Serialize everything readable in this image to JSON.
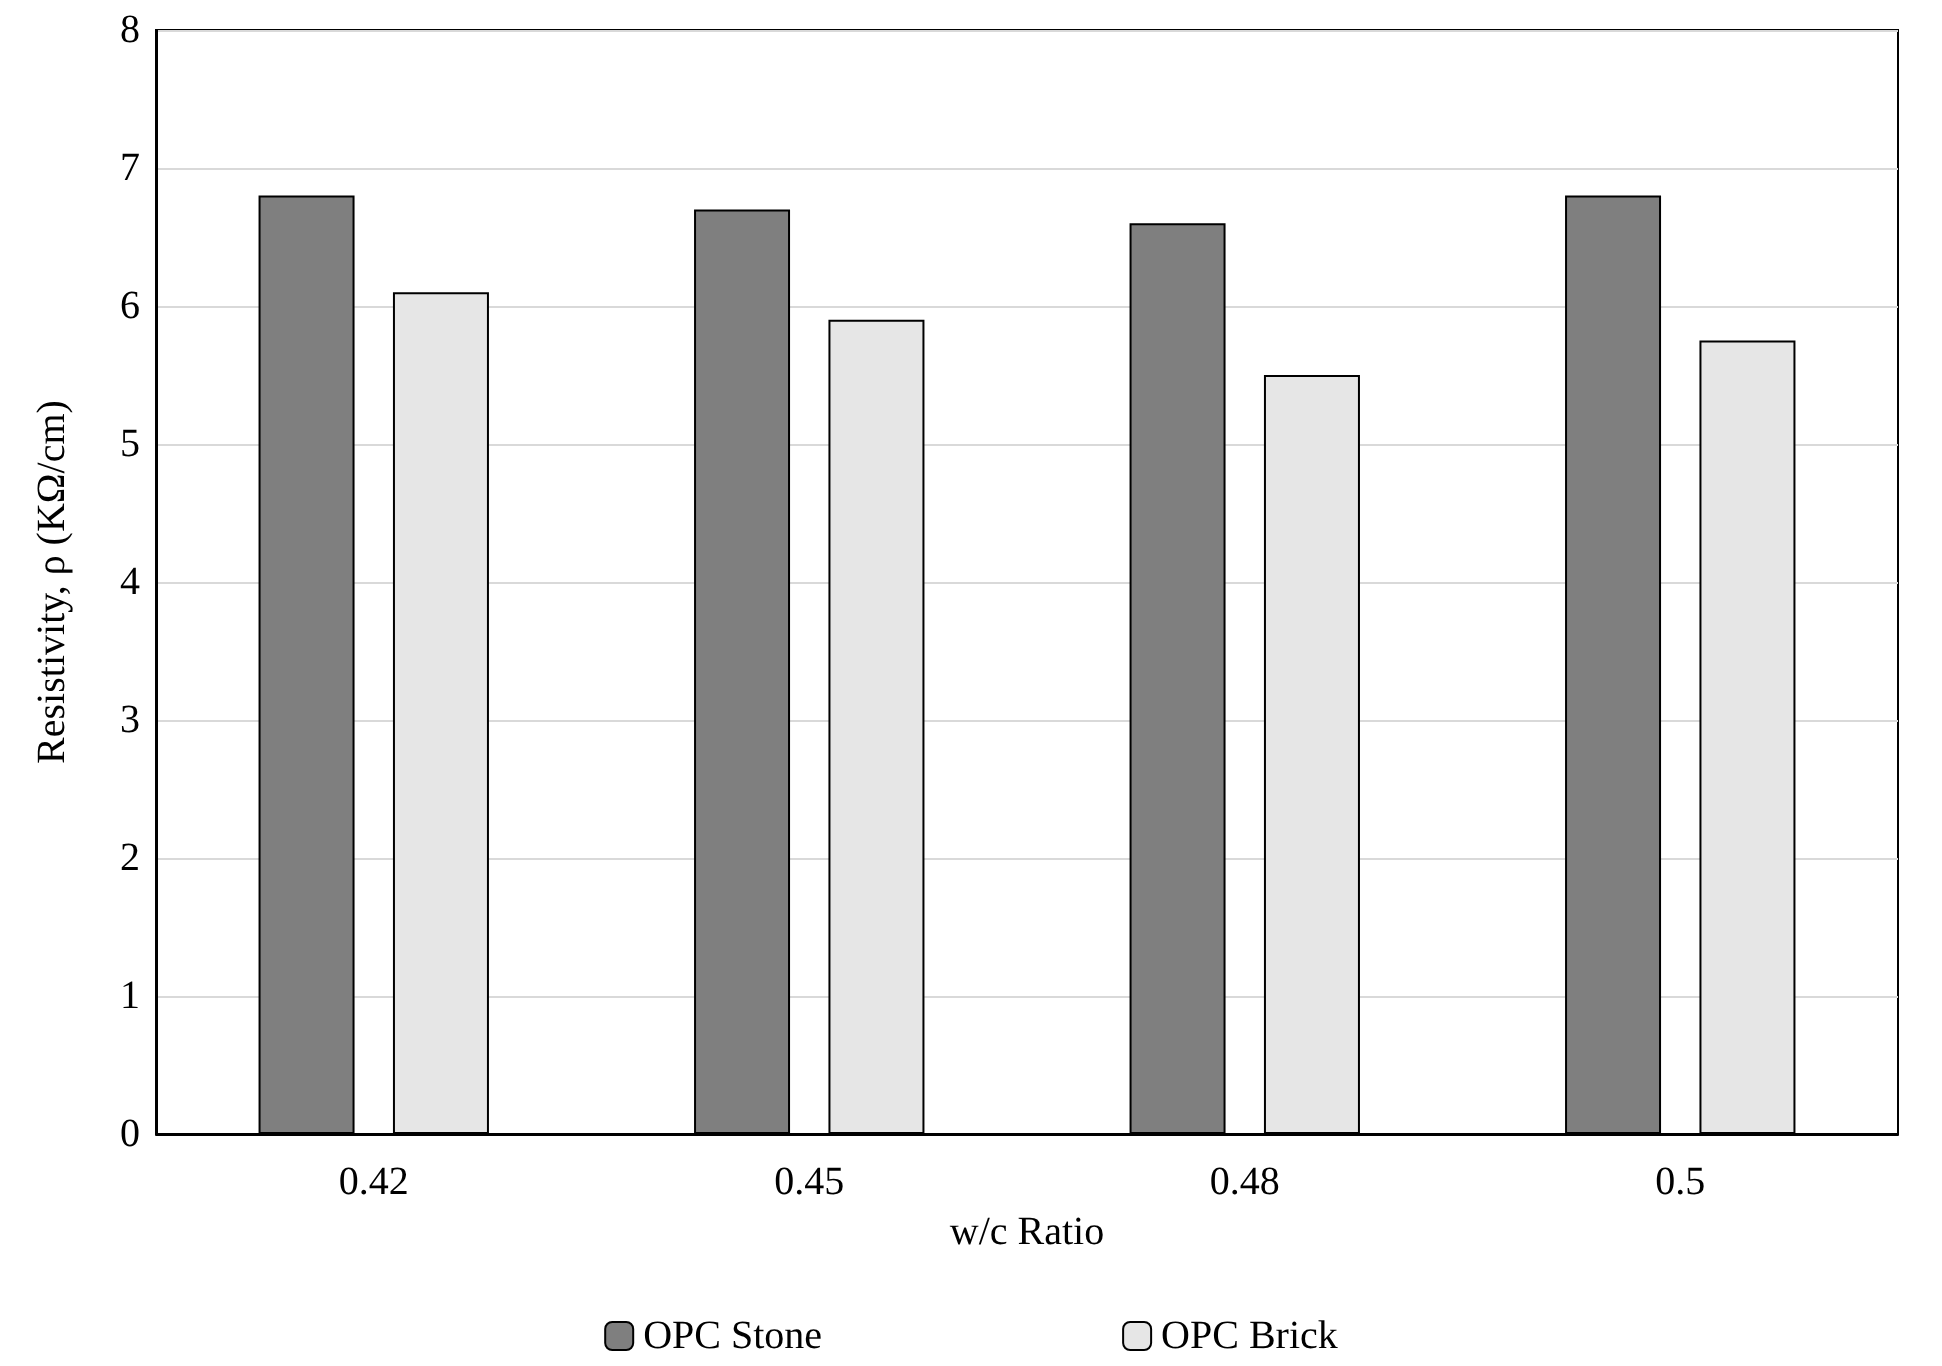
{
  "chart_data": {
    "type": "bar",
    "xlabel": "w/c Ratio",
    "ylabel": "Resistivity, ρ (KΩ/cm)",
    "categories": [
      "0.42",
      "0.45",
      "0.48",
      "0.5"
    ],
    "series": [
      {
        "name": "OPC Stone",
        "color": "#7f7f7f",
        "values": [
          6.8,
          6.7,
          6.6,
          6.8
        ]
      },
      {
        "name": "OPC Brick",
        "color": "#e6e6e6",
        "values": [
          6.1,
          5.9,
          5.5,
          5.75
        ]
      }
    ],
    "ylim": [
      0,
      8
    ],
    "yticks": [
      0,
      1,
      2,
      3,
      4,
      5,
      6,
      7,
      8
    ],
    "grid": "y",
    "legend": "bottom"
  }
}
